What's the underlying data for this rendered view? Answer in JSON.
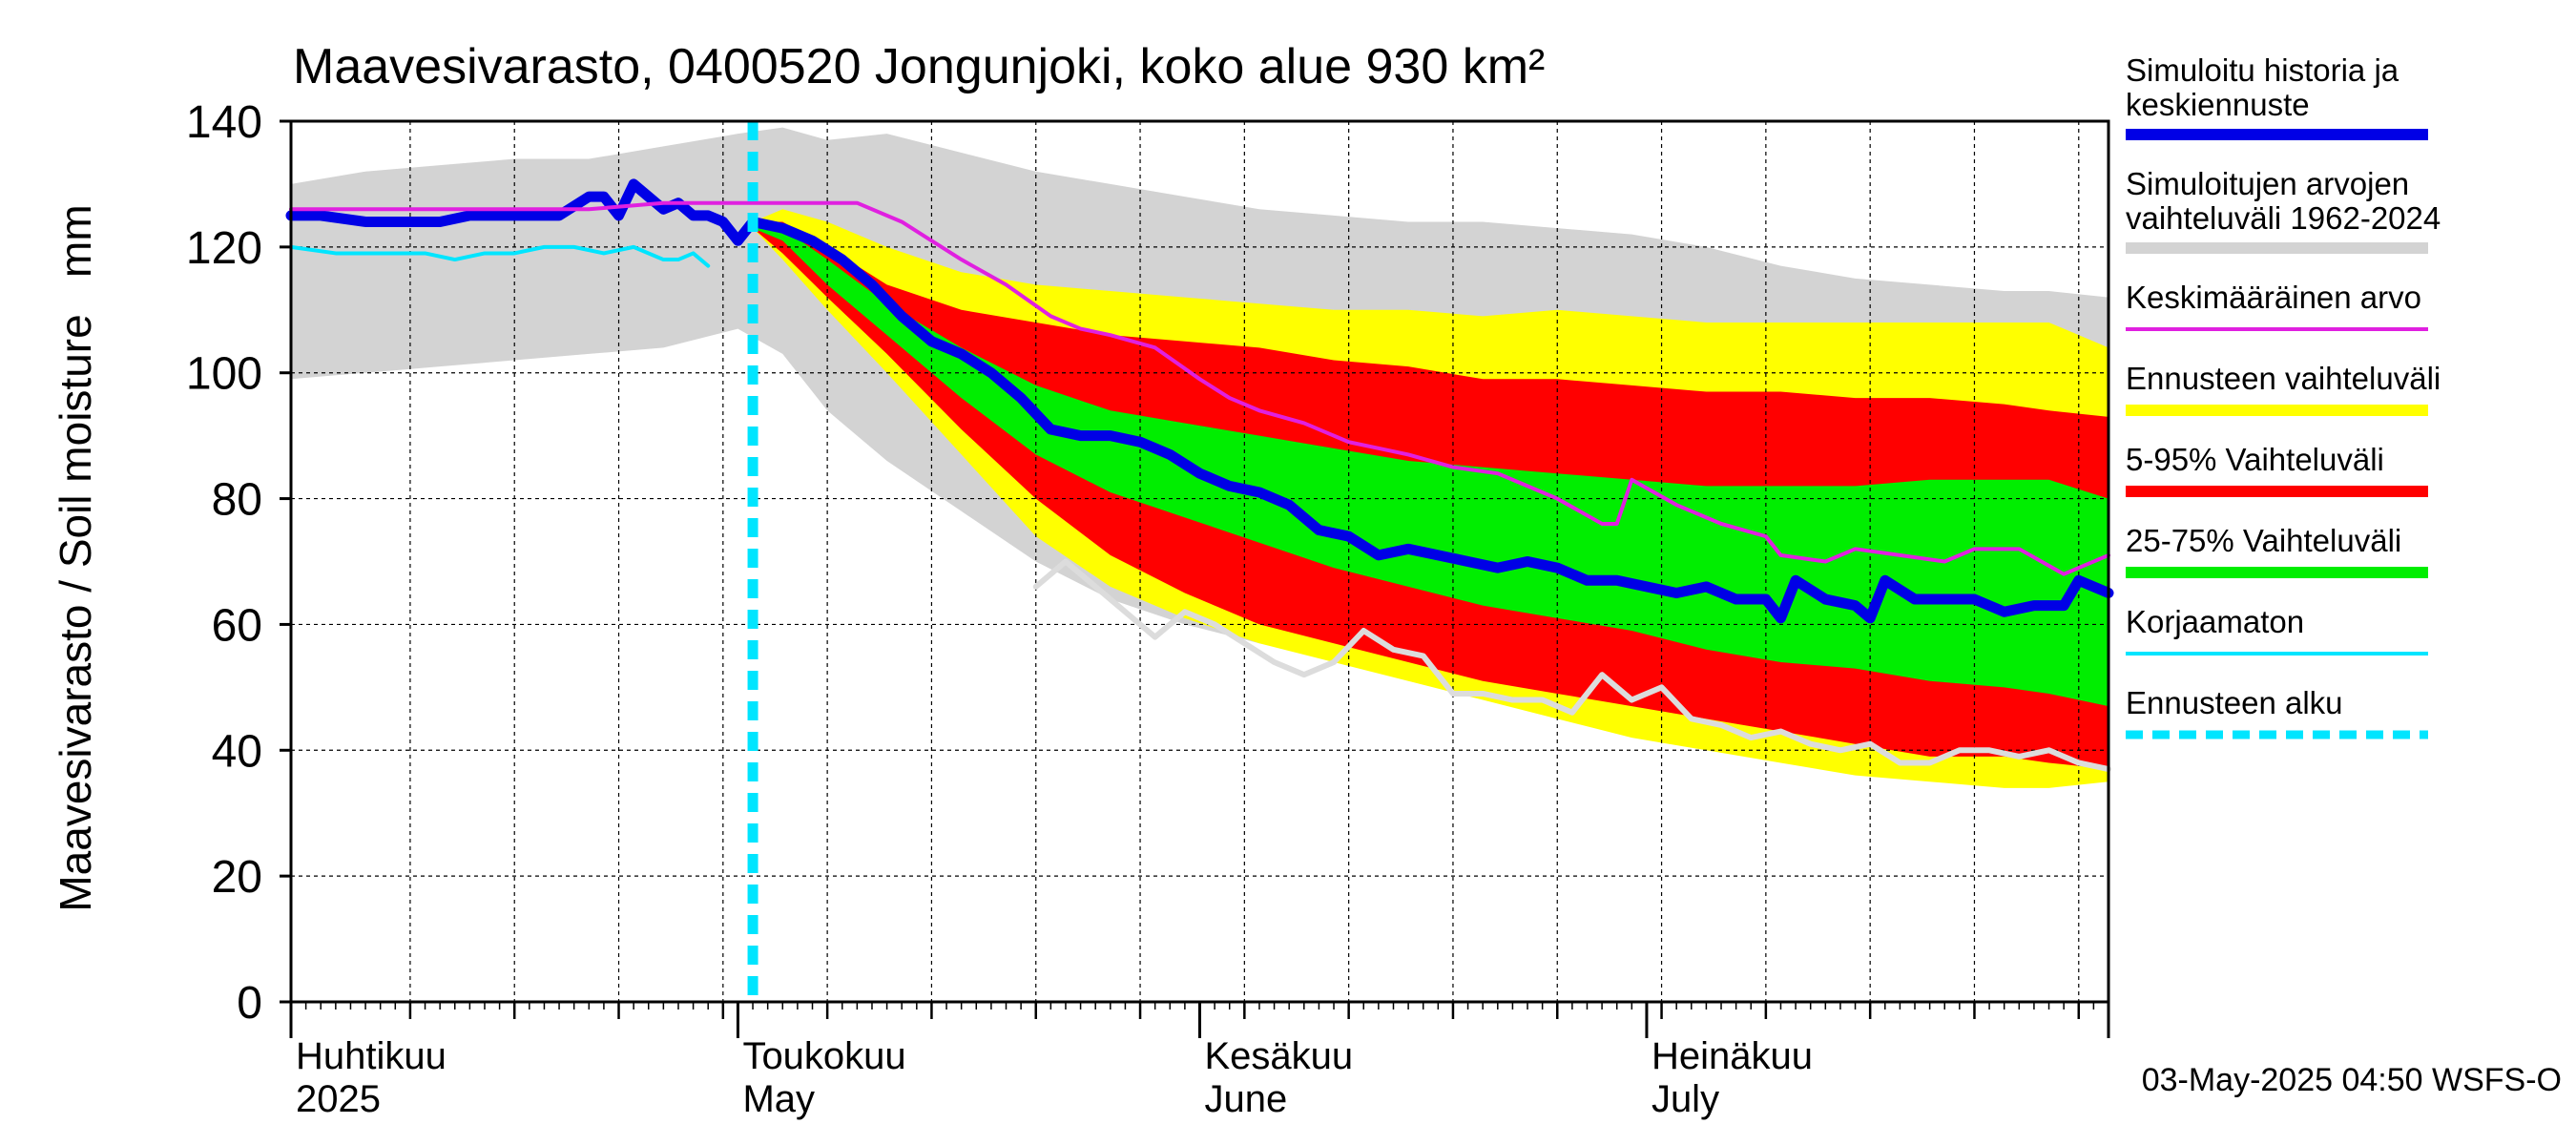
{
  "chart_data": {
    "type": "area",
    "title": "Maavesivarasto, 0400520 Jongunjoki, koko alue 930 km²",
    "ylabel": "Maavesivarasto / Soil moisture   mm",
    "xlabel": "",
    "ylim": [
      0,
      140
    ],
    "xlim_days": [
      0,
      122
    ],
    "yticks": [
      0,
      20,
      40,
      60,
      80,
      100,
      120,
      140
    ],
    "ytick_labels": [
      "0",
      "20",
      "40",
      "60",
      "80",
      "100",
      "120",
      "140"
    ],
    "x_unit": "days since 2025-03-31",
    "month_ticks": [
      {
        "day": 1,
        "fi": "Huhtikuu",
        "en": "2025"
      },
      {
        "day": 31,
        "fi": "Toukokuu",
        "en": "May"
      },
      {
        "day": 62,
        "fi": "Kesäkuu",
        "en": "June"
      },
      {
        "day": 92,
        "fi": "Heinäkuu",
        "en": "July"
      }
    ],
    "forecast_start_day": 31,
    "grid": true,
    "timestamp": "03-May-2025 04:50 WSFS-O",
    "legend": [
      {
        "key": "history",
        "label1": "Simuloitu historia ja",
        "label2": "keskiennuste",
        "color": "#0000e6",
        "style": "thick"
      },
      {
        "key": "range_hist",
        "label1": "Simuloitujen arvojen",
        "label2": "vaihteluväli 1962-2024",
        "color": "#d3d3d3",
        "style": "thick"
      },
      {
        "key": "mean",
        "label1": "Keskimääräinen arvo",
        "label2": "",
        "color": "#e020e0",
        "style": "thin"
      },
      {
        "key": "forecast_range",
        "label1": "Ennusteen vaihteluväli",
        "label2": "",
        "color": "#ffff00",
        "style": "thick"
      },
      {
        "key": "p5_95",
        "label1": "5-95% Vaihteluväli",
        "label2": "",
        "color": "#ff0000",
        "style": "thick"
      },
      {
        "key": "p25_75",
        "label1": "25-75% Vaihteluväli",
        "label2": "",
        "color": "#00ee00",
        "style": "thick"
      },
      {
        "key": "uncorrected",
        "label1": "Korjaamaton",
        "label2": "",
        "color": "#00e5ff",
        "style": "thin"
      },
      {
        "key": "forecast_start",
        "label1": "Ennusteen alku",
        "label2": "",
        "color": "#00e5ff",
        "style": "dashed"
      }
    ],
    "series": [
      {
        "name": "Simuloitujen arvojen vaihteluväli 1962-2024",
        "kind": "band",
        "color": "#d3d3d3",
        "x": [
          0,
          5,
          10,
          15,
          20,
          25,
          30,
          33,
          36,
          40,
          45,
          50,
          55,
          60,
          65,
          70,
          75,
          80,
          85,
          90,
          95,
          100,
          105,
          110,
          115,
          118,
          122
        ],
        "upper": [
          130,
          132,
          133,
          134,
          134,
          136,
          138,
          139,
          137,
          138,
          135,
          132,
          130,
          128,
          126,
          125,
          124,
          124,
          123,
          122,
          120,
          117,
          115,
          114,
          113,
          113,
          112
        ],
        "lower": [
          99,
          100,
          101,
          102,
          103,
          104,
          107,
          103,
          94,
          86,
          78,
          70,
          64,
          60,
          57,
          55,
          53,
          51,
          48,
          46,
          44,
          42,
          40,
          38,
          36,
          35,
          36
        ]
      },
      {
        "name": "Ennusteen vaihteluväli",
        "kind": "band",
        "color": "#ffff00",
        "x": [
          31,
          33,
          36,
          40,
          45,
          50,
          55,
          60,
          65,
          70,
          75,
          80,
          85,
          90,
          95,
          100,
          105,
          110,
          115,
          118,
          122
        ],
        "upper": [
          124,
          126,
          124,
          120,
          116,
          114,
          113,
          112,
          111,
          110,
          110,
          109,
          110,
          109,
          108,
          108,
          108,
          108,
          108,
          108,
          104
        ],
        "lower": [
          123,
          118,
          110,
          100,
          87,
          74,
          66,
          61,
          57,
          54,
          51,
          48,
          45,
          42,
          40,
          38,
          36,
          35,
          34,
          34,
          35
        ]
      },
      {
        "name": "5-95% Vaihteluväli",
        "kind": "band",
        "color": "#ff0000",
        "x": [
          31,
          33,
          36,
          40,
          45,
          50,
          55,
          60,
          65,
          70,
          75,
          80,
          85,
          90,
          95,
          100,
          105,
          110,
          115,
          118,
          122
        ],
        "upper": [
          124,
          124,
          120,
          114,
          110,
          108,
          106,
          105,
          104,
          102,
          101,
          99,
          99,
          98,
          97,
          97,
          96,
          96,
          95,
          94,
          93
        ],
        "lower": [
          123,
          119,
          112,
          103,
          91,
          80,
          71,
          65,
          60,
          57,
          54,
          51,
          49,
          47,
          45,
          43,
          41,
          39,
          39,
          38,
          37
        ]
      },
      {
        "name": "25-75% Vaihteluväli",
        "kind": "band",
        "color": "#00ee00",
        "x": [
          31,
          33,
          36,
          40,
          45,
          50,
          55,
          60,
          65,
          70,
          75,
          80,
          85,
          90,
          95,
          100,
          105,
          110,
          115,
          118,
          122
        ],
        "upper": [
          124,
          123,
          118,
          111,
          104,
          98,
          94,
          92,
          90,
          88,
          86,
          85,
          84,
          83,
          82,
          82,
          82,
          83,
          83,
          83,
          80
        ],
        "lower": [
          123,
          121,
          114,
          106,
          96,
          87,
          81,
          77,
          73,
          69,
          66,
          63,
          61,
          59,
          56,
          54,
          53,
          51,
          50,
          49,
          47
        ]
      },
      {
        "name": "Simuloitu historia",
        "kind": "line",
        "color": "#0000e6",
        "width": 11,
        "x": [
          0,
          2,
          5,
          8,
          10,
          12,
          15,
          18,
          20,
          21,
          22,
          23,
          24,
          25,
          26,
          27,
          28,
          29,
          30,
          31
        ],
        "y": [
          125,
          125,
          124,
          124,
          124,
          125,
          125,
          125,
          128,
          128,
          125,
          130,
          128,
          126,
          127,
          125,
          125,
          124,
          121,
          124
        ]
      },
      {
        "name": "Keskiennuste",
        "kind": "line",
        "color": "#0000e6",
        "width": 11,
        "x": [
          31,
          33,
          35,
          37,
          39,
          41,
          43,
          45,
          47,
          49,
          51,
          53,
          55,
          57,
          59,
          61,
          63,
          65,
          67,
          69,
          71,
          73,
          75,
          77,
          79,
          81,
          83,
          85,
          87,
          89,
          91,
          93,
          95,
          97,
          99,
          100,
          101,
          103,
          105,
          106,
          107,
          109,
          111,
          113,
          115,
          117,
          119,
          120,
          122
        ],
        "y": [
          124,
          123,
          121,
          118,
          114,
          109,
          105,
          103,
          100,
          96,
          91,
          90,
          90,
          89,
          87,
          84,
          82,
          81,
          79,
          75,
          74,
          71,
          72,
          71,
          70,
          69,
          70,
          69,
          67,
          67,
          66,
          65,
          66,
          64,
          64,
          61,
          67,
          64,
          63,
          61,
          67,
          64,
          64,
          64,
          62,
          63,
          63,
          67,
          65
        ]
      },
      {
        "name": "Keskimääräinen arvo",
        "kind": "line",
        "color": "#e020e0",
        "width": 4,
        "x": [
          0,
          5,
          10,
          15,
          20,
          25,
          30,
          33,
          35,
          38,
          41,
          43,
          45,
          48,
          51,
          53,
          55,
          58,
          61,
          63,
          65,
          68,
          71,
          73,
          75,
          78,
          81,
          83,
          85,
          88,
          89,
          90,
          93,
          96,
          99,
          100,
          103,
          105,
          108,
          111,
          113,
          116,
          119,
          122
        ],
        "y": [
          126,
          126,
          126,
          126,
          126,
          127,
          127,
          127,
          127,
          127,
          124,
          121,
          118,
          114,
          109,
          107,
          106,
          104,
          99,
          96,
          94,
          92,
          89,
          88,
          87,
          85,
          84,
          82,
          80,
          76,
          76,
          83,
          79,
          76,
          74,
          71,
          70,
          72,
          71,
          70,
          72,
          72,
          68,
          71
        ]
      },
      {
        "name": "Korjaamaton",
        "kind": "line",
        "color": "#00e5ff",
        "width": 4,
        "x": [
          0,
          3,
          6,
          9,
          11,
          13,
          15,
          17,
          19,
          21,
          23,
          25,
          26,
          27,
          28
        ],
        "y": [
          120,
          119,
          119,
          119,
          118,
          119,
          119,
          120,
          120,
          119,
          120,
          118,
          118,
          119,
          117
        ]
      },
      {
        "name": "Havaittu (harmaa)",
        "kind": "line",
        "color": "#dcdcdc",
        "width": 6,
        "x": [
          50,
          52,
          54,
          56,
          58,
          60,
          62,
          64,
          66,
          68,
          70,
          72,
          74,
          76,
          78,
          80,
          82,
          84,
          86,
          88,
          90,
          92,
          94,
          96,
          98,
          100,
          102,
          104,
          106,
          108,
          110,
          112,
          114,
          116,
          118,
          120,
          122
        ],
        "y": [
          66,
          70,
          66,
          62,
          58,
          62,
          60,
          57,
          54,
          52,
          54,
          59,
          56,
          55,
          49,
          49,
          48,
          48,
          46,
          52,
          48,
          50,
          45,
          44,
          42,
          43,
          41,
          40,
          41,
          38,
          38,
          40,
          40,
          39,
          40,
          38,
          37
        ]
      }
    ]
  }
}
